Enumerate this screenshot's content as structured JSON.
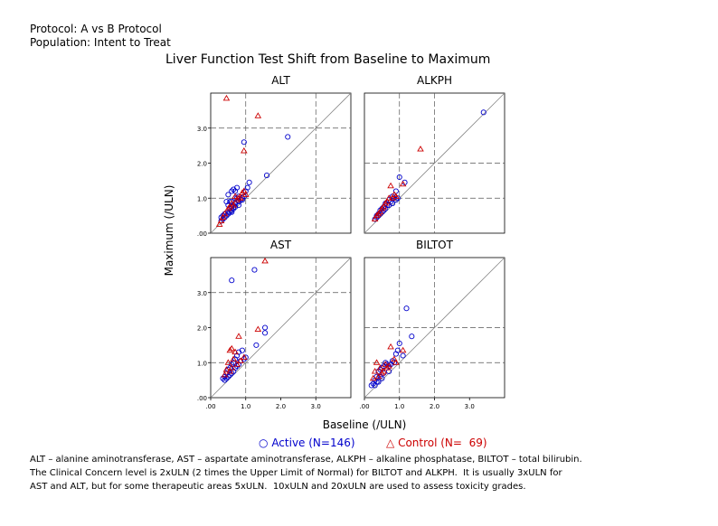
{
  "header": {
    "protocol": "Protocol: A vs B Protocol",
    "population": "Population: Intent to Treat"
  },
  "title": "Liver Function Test Shift from Baseline to Maximum",
  "legend": {
    "active": "Active (N=146)",
    "control": "Control (N=  69)",
    "active_color": "#0000cc",
    "control_color": "#cc0000"
  },
  "footnote": [
    "ALT – alanine aminotransferase, AST – aspartate aminotransferase, ALKPH – alkaline phosphatase, BILTOT – total bilirubin.",
    "The Clinical Concern level is 2xULN (2 times the Upper Limit of Normal) for BILTOT and ALKPH.  It is usually 3xULN for",
    "AST and ALT, but for some therapeutic areas 5xULN.  10xULN and 20xULN are used to assess toxicity grades."
  ],
  "chart_data": {
    "type": "scatter",
    "xlabel": "Baseline (/ULN)",
    "ylabel": "Maximum (/ULN)",
    "xlim": [
      0,
      4
    ],
    "ylim": [
      0,
      4
    ],
    "x_ticks": [
      ".00",
      "1.0",
      "2.0",
      "3.0"
    ],
    "y_ticks": [
      ".00",
      "1.0",
      "2.0",
      "3.0"
    ],
    "grid": false,
    "legend_position": "bottom",
    "panels": [
      {
        "name": "ALT",
        "concern_level": 3,
        "series": [
          {
            "name": "Active",
            "marker": "circle",
            "points": [
              [
                0.5,
                0.6
              ],
              [
                0.55,
                0.7
              ],
              [
                0.6,
                0.75
              ],
              [
                0.65,
                0.8
              ],
              [
                0.7,
                0.85
              ],
              [
                0.45,
                0.5
              ],
              [
                0.4,
                0.45
              ],
              [
                0.6,
                0.9
              ],
              [
                0.7,
                1.0
              ],
              [
                0.75,
                1.0
              ],
              [
                0.8,
                1.05
              ],
              [
                0.6,
                1.2
              ],
              [
                0.65,
                1.25
              ],
              [
                0.7,
                1.2
              ],
              [
                0.5,
                0.8
              ],
              [
                0.55,
                0.9
              ],
              [
                0.35,
                0.4
              ],
              [
                0.3,
                0.35
              ],
              [
                0.8,
                0.9
              ],
              [
                0.85,
                0.95
              ],
              [
                0.9,
                1.0
              ],
              [
                0.95,
                1.05
              ],
              [
                1.0,
                1.2
              ],
              [
                1.05,
                1.3
              ],
              [
                1.1,
                1.45
              ],
              [
                0.75,
                1.3
              ],
              [
                0.5,
                1.1
              ],
              [
                0.45,
                0.9
              ],
              [
                0.6,
                0.65
              ],
              [
                0.7,
                0.75
              ],
              [
                0.65,
                0.7
              ],
              [
                0.55,
                0.6
              ],
              [
                0.95,
                2.6
              ],
              [
                1.6,
                1.65
              ],
              [
                2.2,
                2.75
              ],
              [
                0.4,
                0.55
              ],
              [
                0.35,
                0.5
              ],
              [
                0.3,
                0.45
              ],
              [
                0.5,
                0.55
              ],
              [
                0.8,
                0.8
              ],
              [
                0.9,
                0.95
              ],
              [
                0.6,
                0.6
              ]
            ]
          },
          {
            "name": "Control",
            "marker": "triangle",
            "points": [
              [
                0.45,
                3.85
              ],
              [
                1.35,
                3.35
              ],
              [
                0.95,
                2.35
              ],
              [
                0.7,
                1.05
              ],
              [
                0.9,
                1.15
              ],
              [
                0.8,
                1.0
              ],
              [
                0.6,
                0.85
              ],
              [
                0.5,
                0.7
              ],
              [
                0.4,
                0.55
              ],
              [
                0.35,
                0.45
              ],
              [
                0.3,
                0.35
              ],
              [
                0.25,
                0.25
              ],
              [
                0.75,
                0.95
              ],
              [
                0.85,
                1.0
              ],
              [
                0.55,
                0.75
              ],
              [
                0.65,
                0.8
              ],
              [
                1.0,
                1.1
              ],
              [
                0.95,
                1.2
              ]
            ]
          }
        ]
      },
      {
        "name": "ALKPH",
        "concern_level": 2,
        "series": [
          {
            "name": "Active",
            "marker": "circle",
            "points": [
              [
                3.4,
                3.45
              ],
              [
                1.0,
                1.6
              ],
              [
                1.15,
                1.45
              ],
              [
                0.9,
                1.2
              ],
              [
                0.8,
                1.05
              ],
              [
                0.7,
                0.95
              ],
              [
                0.6,
                0.85
              ],
              [
                0.55,
                0.75
              ],
              [
                0.5,
                0.7
              ],
              [
                0.45,
                0.65
              ],
              [
                0.4,
                0.55
              ],
              [
                0.35,
                0.5
              ],
              [
                0.3,
                0.4
              ],
              [
                0.85,
                1.0
              ],
              [
                0.75,
                0.9
              ],
              [
                0.65,
                0.8
              ],
              [
                0.6,
                0.7
              ],
              [
                0.7,
                0.8
              ],
              [
                0.5,
                0.6
              ],
              [
                0.4,
                0.5
              ],
              [
                0.8,
                0.85
              ],
              [
                0.9,
                0.95
              ],
              [
                0.95,
                1.0
              ],
              [
                0.55,
                0.65
              ],
              [
                0.45,
                0.55
              ],
              [
                0.35,
                0.45
              ]
            ]
          },
          {
            "name": "Control",
            "marker": "triangle",
            "points": [
              [
                1.6,
                2.4
              ],
              [
                0.75,
                1.35
              ],
              [
                1.1,
                1.4
              ],
              [
                0.85,
                1.1
              ],
              [
                0.7,
                1.0
              ],
              [
                0.6,
                0.85
              ],
              [
                0.5,
                0.7
              ],
              [
                0.4,
                0.55
              ],
              [
                0.3,
                0.4
              ],
              [
                0.55,
                0.75
              ],
              [
                0.65,
                0.9
              ],
              [
                0.8,
                1.0
              ],
              [
                0.45,
                0.6
              ],
              [
                0.35,
                0.5
              ],
              [
                0.9,
                1.05
              ]
            ]
          }
        ]
      },
      {
        "name": "AST",
        "concern_level": 3,
        "series": [
          {
            "name": "Active",
            "marker": "circle",
            "points": [
              [
                0.6,
                3.35
              ],
              [
                1.25,
                3.65
              ],
              [
                1.55,
                2.0
              ],
              [
                1.55,
                1.85
              ],
              [
                1.3,
                1.5
              ],
              [
                0.8,
                1.3
              ],
              [
                0.9,
                1.35
              ],
              [
                0.75,
                1.2
              ],
              [
                0.7,
                1.1
              ],
              [
                0.65,
                1.0
              ],
              [
                0.6,
                0.95
              ],
              [
                0.55,
                0.85
              ],
              [
                0.5,
                0.8
              ],
              [
                0.45,
                0.7
              ],
              [
                0.4,
                0.6
              ],
              [
                0.35,
                0.55
              ],
              [
                0.85,
                1.05
              ],
              [
                0.95,
                1.1
              ],
              [
                1.0,
                1.15
              ],
              [
                0.55,
                0.65
              ],
              [
                0.5,
                0.6
              ],
              [
                0.65,
                0.75
              ],
              [
                0.7,
                0.85
              ],
              [
                0.6,
                0.7
              ],
              [
                0.45,
                0.55
              ],
              [
                0.4,
                0.5
              ],
              [
                0.75,
                0.9
              ],
              [
                0.8,
                0.95
              ]
            ]
          },
          {
            "name": "Control",
            "marker": "triangle",
            "points": [
              [
                1.55,
                3.9
              ],
              [
                0.8,
                1.75
              ],
              [
                1.35,
                1.95
              ],
              [
                0.6,
                1.4
              ],
              [
                0.55,
                1.35
              ],
              [
                0.7,
                1.3
              ],
              [
                0.5,
                1.0
              ],
              [
                0.65,
                1.1
              ],
              [
                0.45,
                0.8
              ],
              [
                0.4,
                0.65
              ],
              [
                0.75,
                0.95
              ],
              [
                0.85,
                1.05
              ],
              [
                0.55,
                0.75
              ],
              [
                0.6,
                0.85
              ],
              [
                0.95,
                1.15
              ]
            ]
          }
        ]
      },
      {
        "name": "BILTOT",
        "concern_level": 2,
        "series": [
          {
            "name": "Active",
            "marker": "circle",
            "points": [
              [
                1.2,
                2.55
              ],
              [
                1.35,
                1.75
              ],
              [
                1.0,
                1.55
              ],
              [
                0.95,
                1.35
              ],
              [
                0.9,
                1.25
              ],
              [
                0.8,
                1.05
              ],
              [
                0.75,
                0.95
              ],
              [
                0.7,
                0.9
              ],
              [
                0.6,
                1.0
              ],
              [
                0.55,
                0.9
              ],
              [
                0.5,
                0.85
              ],
              [
                0.45,
                0.8
              ],
              [
                0.4,
                0.75
              ],
              [
                0.35,
                0.6
              ],
              [
                0.3,
                0.5
              ],
              [
                0.25,
                0.4
              ],
              [
                0.2,
                0.35
              ],
              [
                0.65,
                0.95
              ],
              [
                0.85,
                1.0
              ],
              [
                1.1,
                1.2
              ],
              [
                0.55,
                0.7
              ],
              [
                0.45,
                0.6
              ],
              [
                0.35,
                0.45
              ],
              [
                0.3,
                0.35
              ],
              [
                0.5,
                0.55
              ],
              [
                0.7,
                0.75
              ],
              [
                0.4,
                0.45
              ]
            ]
          },
          {
            "name": "Control",
            "marker": "triangle",
            "points": [
              [
                0.75,
                1.45
              ],
              [
                1.1,
                1.35
              ],
              [
                0.85,
                1.1
              ],
              [
                0.6,
                0.95
              ],
              [
                0.45,
                0.85
              ],
              [
                0.35,
                1.0
              ],
              [
                0.3,
                0.75
              ],
              [
                0.5,
                0.7
              ],
              [
                0.4,
                0.6
              ],
              [
                0.65,
                0.85
              ],
              [
                0.55,
                0.75
              ],
              [
                0.25,
                0.55
              ],
              [
                0.9,
                1.0
              ],
              [
                0.7,
                0.9
              ]
            ]
          }
        ]
      }
    ]
  }
}
